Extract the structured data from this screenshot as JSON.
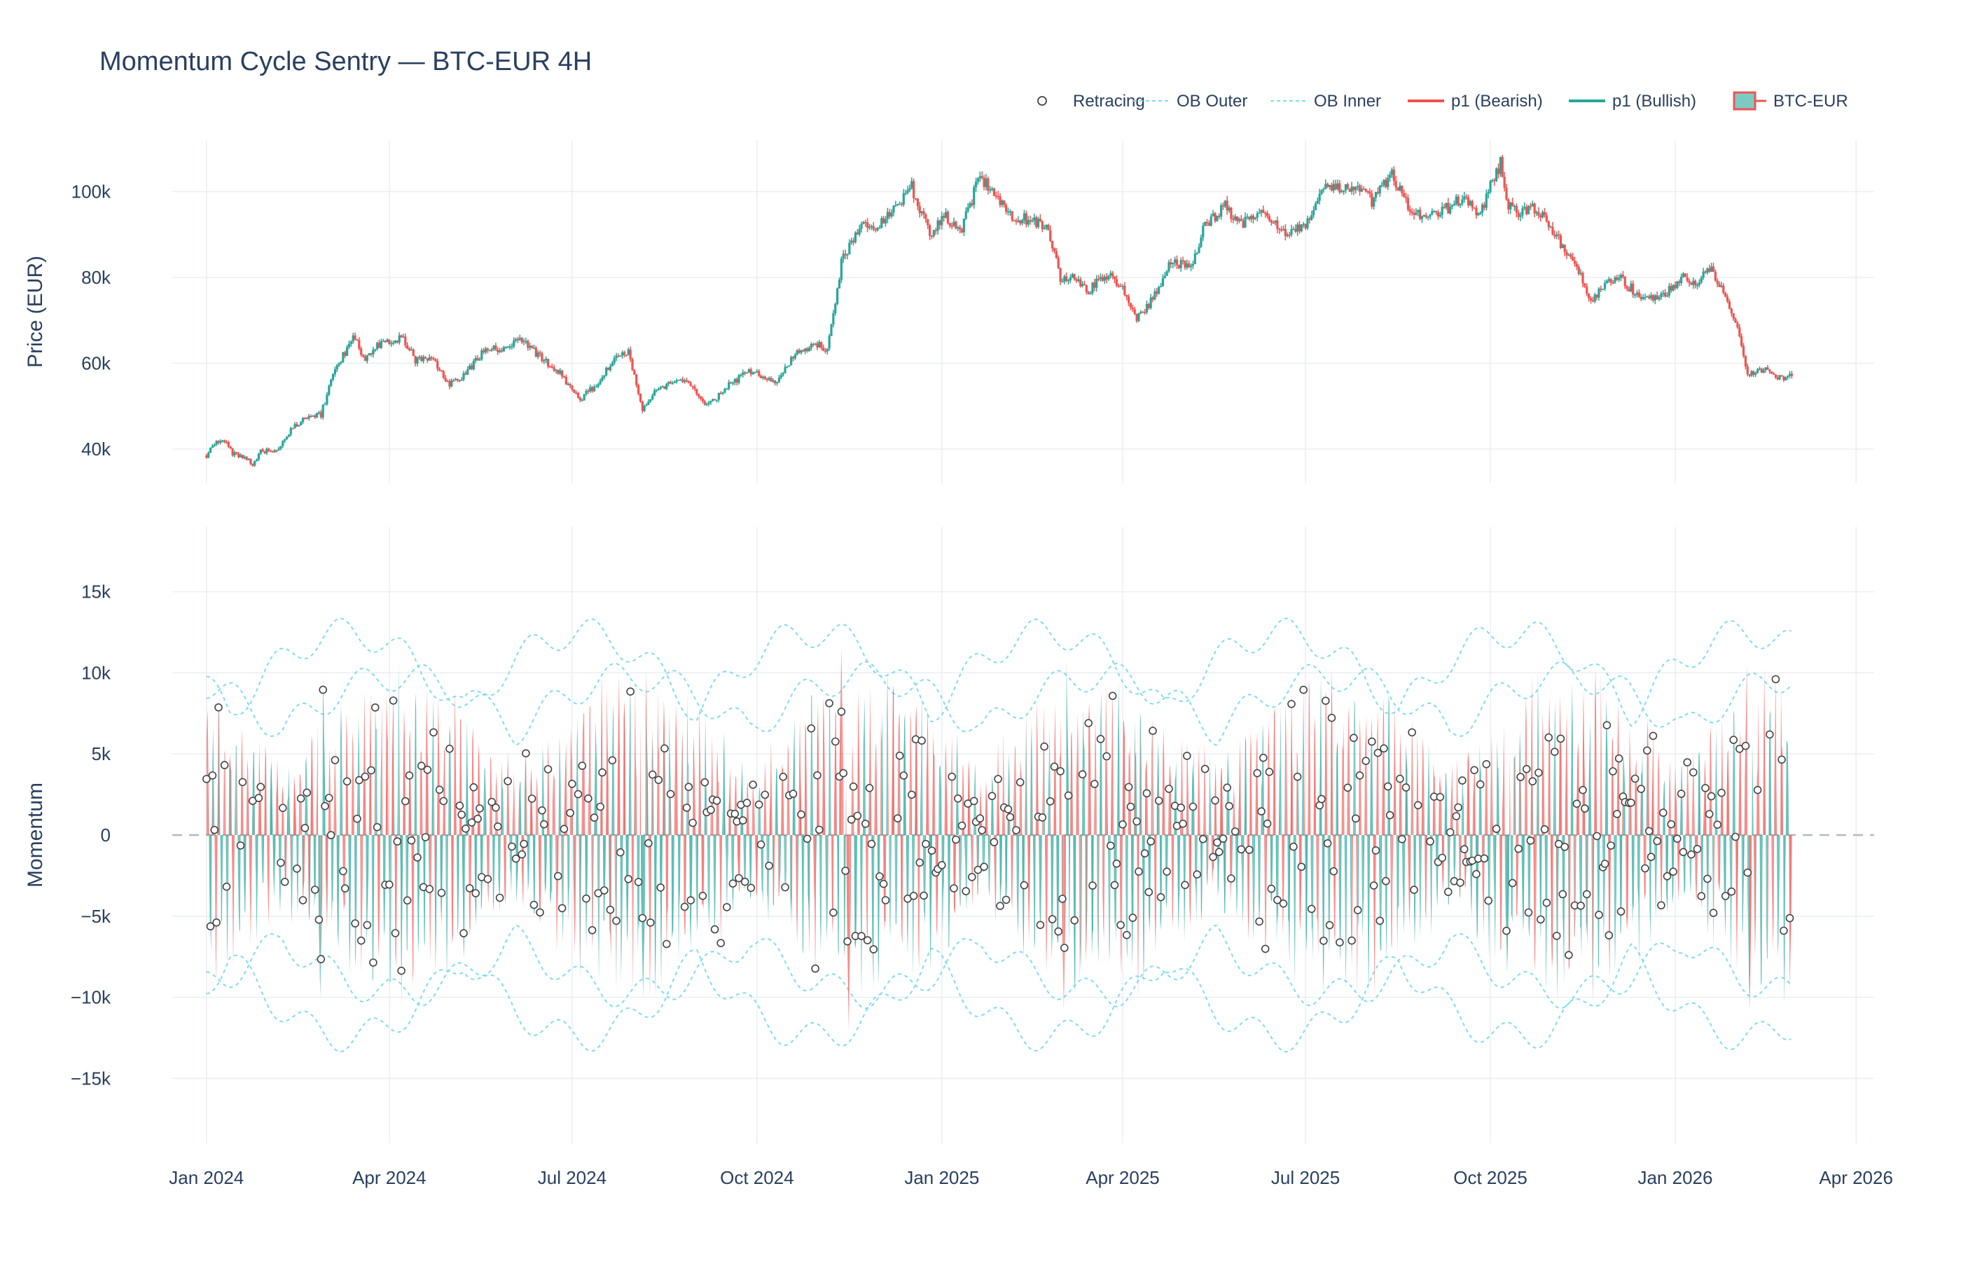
{
  "chart_data": [
    {
      "type": "candlestick",
      "panel": "price",
      "title": "Momentum Cycle Sentry — BTC-EUR 4H",
      "ylabel": "Price (EUR)",
      "ylim": [
        32000,
        112000
      ],
      "yticks": [
        40000,
        60000,
        80000,
        100000
      ],
      "ytick_labels": [
        "40k",
        "60k",
        "80k",
        "100k"
      ],
      "series_name": "BTC-EUR",
      "increasing_color": "#26a69a",
      "decreasing_color": "#ef5350",
      "close_path": [
        [
          "2024-01-01",
          38500
        ],
        [
          "2024-01-05",
          41500
        ],
        [
          "2024-01-10",
          42000
        ],
        [
          "2024-01-14",
          39000
        ],
        [
          "2024-01-20",
          37800
        ],
        [
          "2024-01-24",
          36500
        ],
        [
          "2024-01-28",
          39500
        ],
        [
          "2024-02-05",
          39800
        ],
        [
          "2024-02-12",
          44500
        ],
        [
          "2024-02-20",
          47800
        ],
        [
          "2024-02-27",
          48000
        ],
        [
          "2024-03-05",
          59000
        ],
        [
          "2024-03-10",
          62500
        ],
        [
          "2024-03-14",
          66500
        ],
        [
          "2024-03-20",
          60500
        ],
        [
          "2024-03-28",
          65000
        ],
        [
          "2024-04-08",
          66000
        ],
        [
          "2024-04-14",
          60500
        ],
        [
          "2024-04-22",
          61500
        ],
        [
          "2024-05-01",
          55000
        ],
        [
          "2024-05-10",
          58000
        ],
        [
          "2024-05-20",
          64000
        ],
        [
          "2024-05-28",
          63000
        ],
        [
          "2024-06-05",
          65500
        ],
        [
          "2024-06-15",
          61500
        ],
        [
          "2024-06-25",
          57500
        ],
        [
          "2024-07-05",
          51500
        ],
        [
          "2024-07-14",
          55500
        ],
        [
          "2024-07-22",
          61500
        ],
        [
          "2024-07-29",
          62500
        ],
        [
          "2024-08-05",
          48500
        ],
        [
          "2024-08-12",
          54500
        ],
        [
          "2024-08-20",
          55000
        ],
        [
          "2024-08-27",
          56500
        ],
        [
          "2024-09-06",
          50000
        ],
        [
          "2024-09-15",
          54000
        ],
        [
          "2024-09-27",
          58500
        ],
        [
          "2024-10-10",
          55500
        ],
        [
          "2024-10-20",
          62000
        ],
        [
          "2024-10-30",
          64500
        ],
        [
          "2024-11-05",
          63500
        ],
        [
          "2024-11-12",
          83500
        ],
        [
          "2024-11-22",
          93000
        ],
        [
          "2024-11-30",
          91500
        ],
        [
          "2024-12-07",
          95500
        ],
        [
          "2024-12-17",
          101000
        ],
        [
          "2024-12-26",
          90500
        ],
        [
          "2025-01-03",
          94500
        ],
        [
          "2025-01-10",
          90500
        ],
        [
          "2025-01-20",
          103500
        ],
        [
          "2025-01-26",
          100500
        ],
        [
          "2025-02-03",
          95000
        ],
        [
          "2025-02-15",
          93000
        ],
        [
          "2025-02-22",
          92000
        ],
        [
          "2025-03-01",
          80000
        ],
        [
          "2025-03-09",
          79500
        ],
        [
          "2025-03-15",
          77000
        ],
        [
          "2025-03-25",
          81000
        ],
        [
          "2025-04-03",
          76000
        ],
        [
          "2025-04-08",
          70500
        ],
        [
          "2025-04-15",
          74500
        ],
        [
          "2025-04-25",
          83500
        ],
        [
          "2025-05-05",
          83000
        ],
        [
          "2025-05-12",
          92000
        ],
        [
          "2025-05-22",
          96500
        ],
        [
          "2025-05-30",
          92500
        ],
        [
          "2025-06-10",
          95500
        ],
        [
          "2025-06-22",
          89500
        ],
        [
          "2025-07-01",
          92500
        ],
        [
          "2025-07-11",
          101500
        ],
        [
          "2025-07-22",
          101000
        ],
        [
          "2025-07-30",
          100500
        ],
        [
          "2025-08-03",
          97500
        ],
        [
          "2025-08-13",
          104000
        ],
        [
          "2025-08-20",
          97500
        ],
        [
          "2025-08-30",
          93500
        ],
        [
          "2025-09-06",
          95000
        ],
        [
          "2025-09-18",
          99000
        ],
        [
          "2025-09-26",
          94500
        ],
        [
          "2025-10-01",
          102000
        ],
        [
          "2025-10-06",
          106500
        ],
        [
          "2025-10-10",
          96500
        ],
        [
          "2025-10-15",
          95500
        ],
        [
          "2025-10-22",
          96500
        ],
        [
          "2025-10-30",
          92500
        ],
        [
          "2025-11-05",
          88000
        ],
        [
          "2025-11-12",
          84000
        ],
        [
          "2025-11-20",
          74500
        ],
        [
          "2025-11-28",
          78500
        ],
        [
          "2025-12-05",
          79500
        ],
        [
          "2025-12-15",
          75500
        ],
        [
          "2025-12-25",
          75500
        ],
        [
          "2026-01-05",
          80000
        ],
        [
          "2026-01-12",
          77500
        ],
        [
          "2026-01-17",
          83000
        ],
        [
          "2026-01-25",
          76500
        ],
        [
          "2026-02-01",
          68500
        ],
        [
          "2026-02-05",
          58500
        ],
        [
          "2026-02-08",
          57500
        ],
        [
          "2026-02-14",
          58500
        ],
        [
          "2026-02-22",
          56500
        ],
        [
          "2026-02-28",
          57000
        ]
      ]
    },
    {
      "type": "area",
      "panel": "momentum",
      "ylabel": "Momentum",
      "ylim": [
        -19000,
        19000
      ],
      "yticks": [
        -15000,
        -10000,
        -5000,
        0,
        5000,
        10000,
        15000
      ],
      "ytick_labels": [
        "−15k",
        "−10k",
        "−5k",
        "0",
        "5k",
        "10k",
        "15k"
      ],
      "zero_line": "dashed",
      "series": [
        {
          "name": "p1 (Bullish)",
          "color": "#26a69a"
        },
        {
          "name": "p1 (Bearish)",
          "color": "#ef5350"
        },
        {
          "name": "OB Inner",
          "color": "#7fdcec"
        },
        {
          "name": "OB Outer",
          "color": "#7fdcec"
        },
        {
          "name": "Retracing",
          "color": "#555555"
        }
      ],
      "notable_extremes": [
        {
          "date": "2024-02-28",
          "value": 9800
        },
        {
          "date": "2024-02-28",
          "value": -10000
        },
        {
          "date": "2024-08-06",
          "value": 10000
        },
        {
          "date": "2024-08-06",
          "value": -10000
        },
        {
          "date": "2024-11-12",
          "value": 11500
        },
        {
          "date": "2024-11-15",
          "value": -12000
        },
        {
          "date": "2025-03-04",
          "value": 10800
        },
        {
          "date": "2025-03-04",
          "value": -10800
        },
        {
          "date": "2025-10-10",
          "value": -8500
        },
        {
          "date": "2026-02-06",
          "value": 10500
        },
        {
          "date": "2026-02-06",
          "value": -10800
        }
      ]
    }
  ],
  "x_axis": {
    "range": [
      "2023-12-15",
      "2026-04-10"
    ],
    "ticks": [
      "2024-01-01",
      "2024-04-01",
      "2024-07-01",
      "2024-10-01",
      "2025-01-01",
      "2025-04-01",
      "2025-07-01",
      "2025-10-01",
      "2026-01-01",
      "2026-04-01"
    ],
    "tick_labels": [
      "Jan 2024",
      "Apr 2024",
      "Jul 2024",
      "Oct 2024",
      "Jan 2025",
      "Apr 2025",
      "Jul 2025",
      "Oct 2025",
      "Jan 2026",
      "Apr 2026"
    ]
  },
  "legend": {
    "position": "top-right",
    "items": [
      {
        "label": "Retracing",
        "symbol": "circle"
      },
      {
        "label": "OB Outer",
        "symbol": "dotted-line"
      },
      {
        "label": "OB Inner",
        "symbol": "dotted-line"
      },
      {
        "label": "p1 (Bearish)",
        "symbol": "line"
      },
      {
        "label": "p1 (Bullish)",
        "symbol": "line"
      },
      {
        "label": "BTC-EUR",
        "symbol": "candle"
      }
    ]
  },
  "colors": {
    "bull": "#26a69a",
    "bear": "#ef5350",
    "band": "#7fdcec",
    "grid": "#ebedf0",
    "text": "#2a3f5f"
  }
}
